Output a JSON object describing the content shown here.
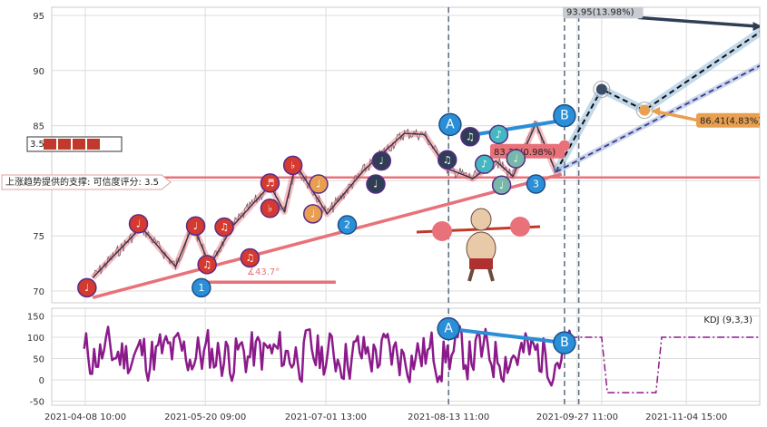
{
  "chart_data": [
    {
      "type": "line",
      "panel": "price",
      "ylim": [
        69,
        96.5
      ],
      "yticks": [
        70,
        75,
        80,
        85,
        90,
        95
      ],
      "xticks": [
        "2021-04-08 10:00",
        "2021-05-20 09:00",
        "2021-07-01 13:00",
        "2021-08-13 11:00",
        "2021-09-27 11:00",
        "2021-11-04 15:00"
      ],
      "grid": true,
      "support_level": 80.3,
      "support_label": "上涨趋势提供的支撑: 可信度评分: 3.5",
      "score_badge": "3.5",
      "angle_label": "∡43.7°",
      "pattern_points": [
        "A",
        "B"
      ],
      "wave_labels": [
        "1",
        "2",
        "3"
      ],
      "targets": [
        {
          "label": "93.95(13.98%)",
          "value": 93.95
        },
        {
          "label": "86.41(4.83%)",
          "value": 86.41
        },
        {
          "label": "83.23(0.98%)",
          "value": 83.23
        }
      ],
      "zigzag": [
        {
          "x": "2021-04-11",
          "y": 71.2
        },
        {
          "x": "2021-04-28",
          "y": 75.8
        },
        {
          "x": "2021-05-10",
          "y": 72.2
        },
        {
          "x": "2021-05-16",
          "y": 76.0
        },
        {
          "x": "2021-05-22",
          "y": 72.3
        },
        {
          "x": "2021-05-30",
          "y": 75.9
        },
        {
          "x": "2021-06-12",
          "y": 79.6
        },
        {
          "x": "2021-06-17",
          "y": 77.2
        },
        {
          "x": "2021-06-21",
          "y": 81.5
        },
        {
          "x": "2021-07-02",
          "y": 77.0
        },
        {
          "x": "2021-07-15",
          "y": 81.0
        },
        {
          "x": "2021-07-29",
          "y": 84.3
        },
        {
          "x": "2021-08-05",
          "y": 84.2
        },
        {
          "x": "2021-08-13",
          "y": 81.1
        },
        {
          "x": "2021-08-22",
          "y": 80.2
        },
        {
          "x": "2021-08-30",
          "y": 81.8
        },
        {
          "x": "2021-09-05",
          "y": 80.4
        },
        {
          "x": "2021-09-13",
          "y": 85.2
        },
        {
          "x": "2021-09-20",
          "y": 80.8
        }
      ],
      "projection": [
        {
          "x": "2021-09-20",
          "y": 80.8
        },
        {
          "x": "2021-10-06",
          "y": 88.3
        },
        {
          "x": "2021-10-21",
          "y": 86.4
        },
        {
          "x": "2021-12-03",
          "y": 93.95
        }
      ]
    },
    {
      "type": "line",
      "panel": "indicator",
      "title": "KDJ (9,3,3)",
      "ylim": [
        -55,
        165
      ],
      "yticks": [
        -50,
        0,
        50,
        100,
        150
      ],
      "pattern_points": [
        "A",
        "B"
      ],
      "projection_tail": [
        {
          "x": "2021-09-20",
          "y": 100
        },
        {
          "x": "2021-10-06",
          "y": 100
        },
        {
          "x": "2021-10-08",
          "y": -30
        },
        {
          "x": "2021-10-25",
          "y": -30
        },
        {
          "x": "2021-10-27",
          "y": 100
        },
        {
          "x": "2021-12-03",
          "y": 100
        }
      ]
    }
  ],
  "colors": {
    "red_line": "#e8717a",
    "blue": "#2a8fd6",
    "navy": "#2f3e55",
    "purple": "#8b1a8b",
    "orange": "#e8a050",
    "grid": "#dcdcdc"
  },
  "icons": [
    "weightlifter-icon",
    "note-markers"
  ]
}
